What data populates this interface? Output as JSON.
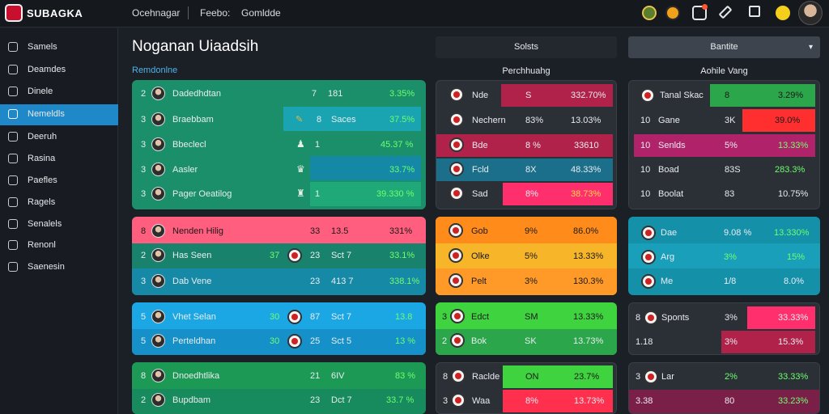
{
  "app": {
    "logo_text": "SUBAGKA"
  },
  "topnav": [
    "Ocehnagar",
    "Feebo:",
    "Gomldde"
  ],
  "colors": {
    "accent": "#1e88c9",
    "green_panel": "#1a8f6a",
    "teal_panel": "#1590a9",
    "pink": "#ff5e7e",
    "orange": "#ff8c1a",
    "yellow": "#f7b52a",
    "bright_green": "#3fd43f",
    "crimson": "#b0224a"
  },
  "top_icons": [
    "globe-icon",
    "fire-icon",
    "notification-icon",
    "edit-icon",
    "calendar-icon",
    "star-icon"
  ],
  "sidebar": {
    "items": [
      {
        "label": "Samels",
        "icon": "grid-icon"
      },
      {
        "label": "Deamdes",
        "icon": "list-icon"
      },
      {
        "label": "Dinele",
        "icon": "chart-icon"
      },
      {
        "label": "Nemeldls",
        "icon": "table-icon"
      },
      {
        "label": "Deeruh",
        "icon": "shield-icon"
      },
      {
        "label": "Rasina",
        "icon": "tag-icon"
      },
      {
        "label": "Paefles",
        "icon": "flag-icon"
      },
      {
        "label": "Ragels",
        "icon": "pin-icon"
      },
      {
        "label": "Senalels",
        "icon": "grid-icon"
      },
      {
        "label": "Renonl",
        "icon": "edit-icon"
      },
      {
        "label": "Saenesin",
        "icon": "settings-icon"
      }
    ]
  },
  "main": {
    "title": "Noganan Uiaadsih",
    "section_label": "Remdonlne",
    "tabs": {
      "left": "Solsts",
      "right": "Bantite"
    },
    "col_heads": {
      "middle": "Perchhuahg",
      "right": "Aohile Vang"
    }
  },
  "panels": {
    "left_1": [
      {
        "rank": "2",
        "name": "Dadedhdtan",
        "mark": "7",
        "val": "181",
        "pct": "3.35%"
      },
      {
        "rank": "3",
        "name": "Braebbam",
        "mark": "✎",
        "val": "8",
        "extra": "Saces",
        "pct": "37.5%"
      },
      {
        "rank": "3",
        "name": "Bbeclecl",
        "mark": "♟",
        "val": "1",
        "pct": "45.37 %"
      },
      {
        "rank": "3",
        "name": "Aasler",
        "mark": "♛",
        "val": "",
        "pct": "33.7%"
      },
      {
        "rank": "3",
        "name": "Pager Oeatilog",
        "mark": "♜",
        "val": "1",
        "pct": "39.330 %"
      }
    ],
    "left_2": [
      {
        "rank": "8",
        "name": "Nenden Hilig",
        "num1": "33",
        "val": "13.5",
        "pct": "331%"
      },
      {
        "rank": "2",
        "name": "Has Seen",
        "num0": "37",
        "num1": "23",
        "val": "Sct 7",
        "pct": "33.1%"
      },
      {
        "rank": "3",
        "name": "Dab Vene",
        "num1": "23",
        "val": "413 7",
        "pct": "338.1%"
      }
    ],
    "left_3": [
      {
        "rank": "5",
        "name": "Vhet Selan",
        "num0": "30",
        "num1": "87",
        "val": "Sct 7",
        "pct": "13.8"
      },
      {
        "rank": "5",
        "name": "Perteldhan",
        "num0": "30",
        "num1": "25",
        "val": "Sct 5",
        "pct": "13 %"
      }
    ],
    "left_4": [
      {
        "rank": "8",
        "name": "Dnoedhtlika",
        "num1": "21",
        "val": "6IV",
        "pct": "83 %"
      },
      {
        "rank": "2",
        "name": "Bupdbam",
        "num1": "23",
        "val": "Dct 7",
        "pct": "33.7 %"
      }
    ],
    "mid_1": [
      {
        "name": "Nde",
        "n": "S",
        "pct": "332.70%"
      },
      {
        "name": "Nechern",
        "n": "83%",
        "pct": "13.03%"
      },
      {
        "name": "Bde",
        "n": "8 %",
        "pct": "33610"
      },
      {
        "name": "Fcld",
        "n": "8X",
        "pct": "48.33%"
      },
      {
        "name": "Sad",
        "n": "8%",
        "pct": "38.73%"
      }
    ],
    "mid_2": [
      {
        "name": "Gob",
        "n": "9%",
        "pct": "86.0%"
      },
      {
        "name": "Olke",
        "n": "5%",
        "pct": "13.33%"
      },
      {
        "name": "Pelt",
        "n": "3%",
        "pct": "130.3%"
      }
    ],
    "mid_3": [
      {
        "rank": "3",
        "name": "Edct",
        "n": "SM",
        "pct": "13.33%"
      },
      {
        "rank": "2",
        "name": "Bok",
        "n": "SK",
        "pct": "13.73%"
      }
    ],
    "mid_4": [
      {
        "rank": "8",
        "name": "Raclde",
        "n": "ON",
        "pct": "23.7%"
      },
      {
        "rank": "3",
        "name": "Waa",
        "n": "8%",
        "pct": "13.73%"
      }
    ],
    "right_1": [
      {
        "rank": "",
        "name": "Tanal Skac",
        "n": "8",
        "pct": "3.29%"
      },
      {
        "rank": "10",
        "name": "Gane",
        "n": "3K",
        "pct": "39.0%"
      },
      {
        "rank": "10",
        "name": "Senlds",
        "n": "5%",
        "pct": "13.33%"
      },
      {
        "rank": "10",
        "name": "Boad",
        "n": "83S",
        "pct": "283.3%"
      },
      {
        "rank": "10",
        "name": "Boolat",
        "n": "83",
        "pct": "10.75%"
      }
    ],
    "right_2": [
      {
        "name": "Dae",
        "n": "9.08 %",
        "pct": "13.330%"
      },
      {
        "name": "Arg",
        "n": "3%",
        "pct": "15%"
      },
      {
        "name": "Me",
        "n": "1/8",
        "pct": "8.0%"
      }
    ],
    "right_3": [
      {
        "rank": "8",
        "name": "Sponts",
        "n": "3%",
        "pct": "33.33%"
      },
      {
        "rank": "1.18",
        "name": "",
        "n": "3%",
        "pct": "15.3%"
      }
    ],
    "right_4": [
      {
        "rank": "3",
        "name": "Lar",
        "n": "2%",
        "pct": "33.33%"
      },
      {
        "rank": "3.38",
        "name": "",
        "n": "80",
        "pct": "33.23%"
      }
    ]
  }
}
